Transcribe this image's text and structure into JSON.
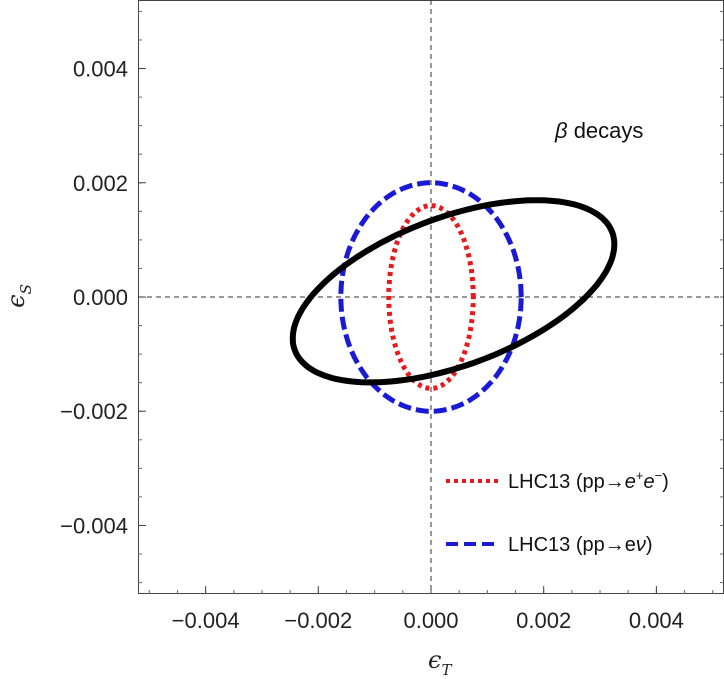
{
  "chart_data": {
    "type": "scatter",
    "xlabel": {
      "symbol": "ϵ",
      "subscript": "T"
    },
    "ylabel": {
      "symbol": "ϵ",
      "subscript": "S"
    },
    "xlim": [
      -0.0052,
      0.0052
    ],
    "ylim": [
      -0.0052,
      0.0052
    ],
    "x_ticks": [
      -0.004,
      -0.002,
      0.0,
      0.002,
      0.004
    ],
    "x_tick_labels": [
      "−0.004",
      "−0.002",
      "0.000",
      "0.002",
      "0.004"
    ],
    "y_ticks": [
      0.004,
      0.002,
      0.0,
      -0.002,
      -0.004
    ],
    "y_tick_labels": [
      "0.004",
      "0.002",
      "0.000",
      "−0.002",
      "−0.004"
    ],
    "reference_lines": {
      "x": 0,
      "y": 0,
      "style": "dashed"
    },
    "annotation": {
      "beta": "β",
      "text": " decays",
      "x": 0.0024,
      "y": 0.0029
    },
    "series": [
      {
        "shape": "ellipse",
        "center": [
          0.0,
          0.0
        ],
        "semi_axes": [
          0.00075,
          0.0016
        ],
        "angle_deg": 0,
        "color": "#e41a1c",
        "dash": "dotted",
        "legend": {
          "prefix": "LHC13 (pp→",
          "v1": "e",
          "s1": "+",
          "v2": "e",
          "s2": "−",
          "suffix": ")"
        }
      },
      {
        "shape": "ellipse",
        "center": [
          0.0,
          0.0
        ],
        "semi_axes": [
          0.0016,
          0.002
        ],
        "angle_deg": 0,
        "color": "#1a1ad6",
        "dash": "dashed",
        "legend": {
          "prefix": "LHC13 (pp→e",
          "v1": "ν",
          "suffix": ")"
        }
      },
      {
        "shape": "ellipse",
        "center": [
          0.0004,
          0.0001
        ],
        "semi_axes": [
          0.003,
          0.0013
        ],
        "angle_deg": 20,
        "color": "#000000",
        "dash": "solid",
        "label": "β decays"
      }
    ]
  }
}
